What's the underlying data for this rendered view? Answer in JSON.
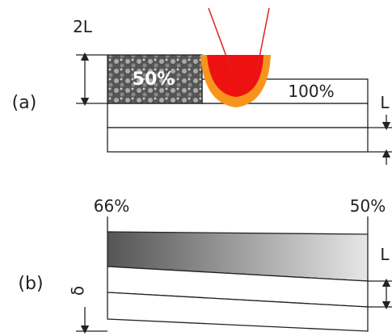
{
  "panel_a": {
    "label": "(a)",
    "thickness_label": "2L",
    "powder_label": "50%",
    "layer_label": "100%",
    "layer_thickness_label": "L"
  },
  "panel_b": {
    "label": "(b)",
    "left_label": "66%",
    "right_label": "50%",
    "layer_thickness_label": "L",
    "offset_label": "δ"
  }
}
